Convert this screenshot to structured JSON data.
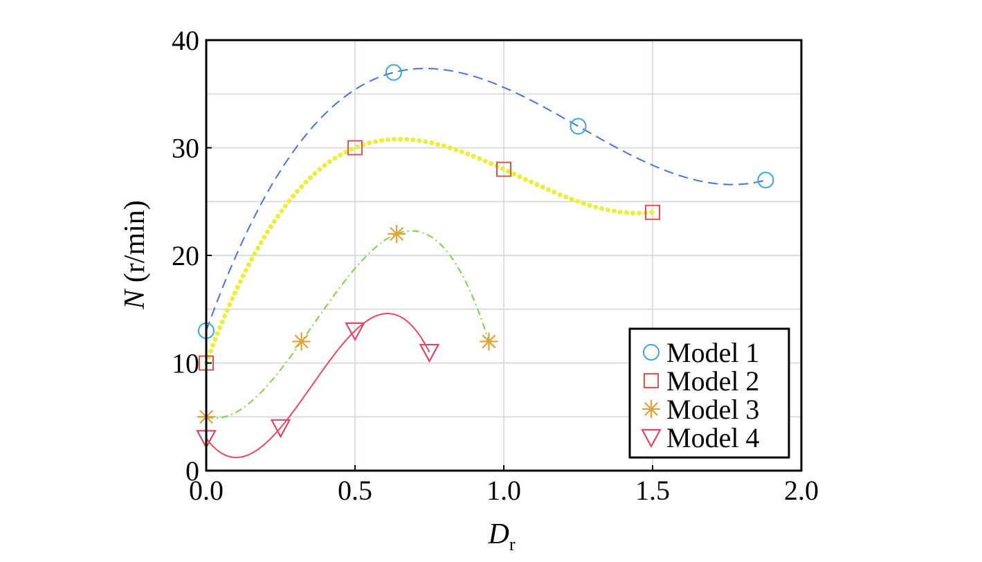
{
  "chart_data": {
    "type": "line",
    "xlabel": "D",
    "xlabel_sub": "r",
    "ylabel_var": "N",
    "ylabel_unit": " (r/min)",
    "xlim": [
      0,
      2.0
    ],
    "ylim": [
      0,
      40
    ],
    "x_ticks": [
      0,
      0.5,
      1.0,
      1.5,
      2.0
    ],
    "x_tick_labels": [
      "0.0",
      "0.5",
      "1.0",
      "1.5",
      "2.0"
    ],
    "y_ticks": [
      0,
      10,
      20,
      30,
      40
    ],
    "y_tick_labels": [
      "0",
      "10",
      "20",
      "30",
      "40"
    ],
    "grid": true,
    "legend_position": "bottom-right",
    "series": [
      {
        "name": "Model 1",
        "marker": "circle",
        "marker_color": "#3aa4dc",
        "line_color": "#4a72d6",
        "line_style": "dashed",
        "x": [
          0.0,
          0.63,
          1.25,
          1.88
        ],
        "y": [
          13,
          37,
          32,
          27
        ]
      },
      {
        "name": "Model 2",
        "marker": "square",
        "marker_color": "#e0524a",
        "line_color": "#eced3c",
        "line_style": "dotted",
        "x": [
          0.0,
          0.5,
          1.0,
          1.5
        ],
        "y": [
          10,
          30,
          28,
          24
        ]
      },
      {
        "name": "Model 3",
        "marker": "asterisk",
        "marker_color": "#e2a33a",
        "line_color": "#7ed24a",
        "line_style": "dashdot",
        "x": [
          0.0,
          0.32,
          0.64,
          0.95
        ],
        "y": [
          5,
          12,
          22,
          12
        ]
      },
      {
        "name": "Model 4",
        "marker": "triangle-down",
        "marker_color": "#e0446a",
        "line_color": "#e84a5a",
        "line_style": "solid",
        "x": [
          0.0,
          0.25,
          0.5,
          0.75
        ],
        "y": [
          3,
          4,
          13,
          11
        ]
      }
    ]
  }
}
